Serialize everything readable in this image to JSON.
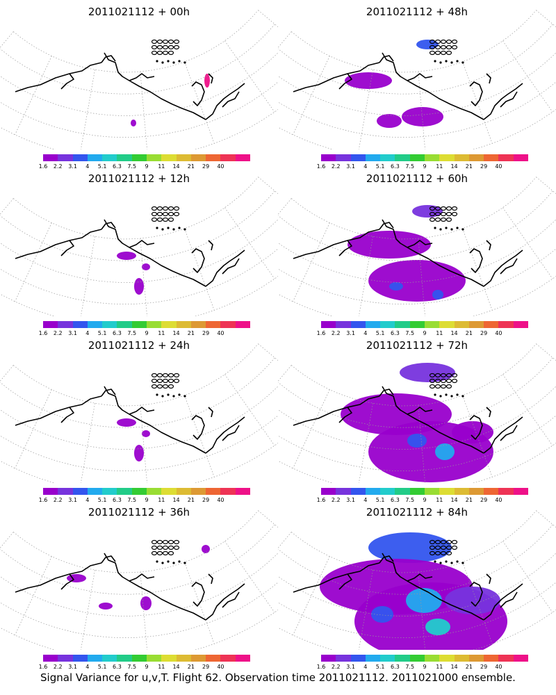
{
  "colorbar": {
    "colors": [
      "#9900cc",
      "#7733dd",
      "#3355ee",
      "#22aaee",
      "#22cccc",
      "#22cc88",
      "#33cc33",
      "#99dd33",
      "#dddd33",
      "#ddbb33",
      "#dd9933",
      "#ee6633",
      "#ee3355",
      "#ee1188"
    ],
    "labels": [
      "1.6",
      "2.2",
      "3.1",
      "4",
      "5.1",
      "6.3",
      "7.5",
      "9",
      "11",
      "14",
      "21",
      "29",
      "40"
    ]
  },
  "panels": [
    {
      "title": "2011021112 + 00h",
      "level": 0
    },
    {
      "title": "2011021112 + 48h",
      "level": 3
    },
    {
      "title": "2011021112 + 12h",
      "level": 1
    },
    {
      "title": "2011021112 + 60h",
      "level": 4
    },
    {
      "title": "2011021112 + 24h",
      "level": 1
    },
    {
      "title": "2011021112 + 72h",
      "level": 5
    },
    {
      "title": "2011021112 + 36h",
      "level": 2
    },
    {
      "title": "2011021112 + 84h",
      "level": 6
    }
  ],
  "caption": "Signal Variance for u,v,T. Flight 62. Observation time 2011021112. 2011021000 ensemble."
}
